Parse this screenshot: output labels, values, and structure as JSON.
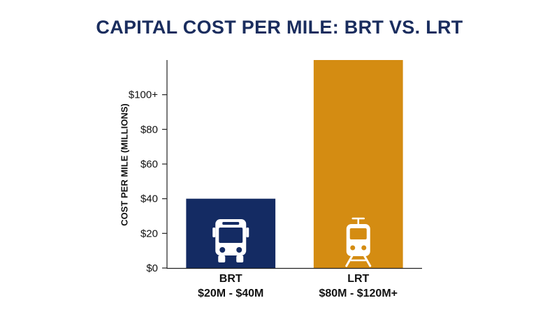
{
  "chart_data": {
    "type": "bar",
    "title": "CAPITAL COST PER MILE: BRT VS. LRT",
    "ylabel": "COST PER MILE (MILLIONS)",
    "xlabel": "",
    "ylim": [
      0,
      120
    ],
    "yticks": [
      0,
      20,
      40,
      60,
      80,
      100
    ],
    "ytick_labels": [
      "$0",
      "$20",
      "$40",
      "$60",
      "$80",
      "$100+"
    ],
    "grid": false,
    "categories": [
      "BRT",
      "LRT"
    ],
    "ranges": [
      "$20M - $40M",
      "$80M - $120M+"
    ],
    "values": [
      40,
      120
    ],
    "colors": [
      "#142b63",
      "#d48c12"
    ],
    "icons": [
      "bus-icon",
      "train-icon"
    ],
    "icon_color": "#ffffff"
  }
}
